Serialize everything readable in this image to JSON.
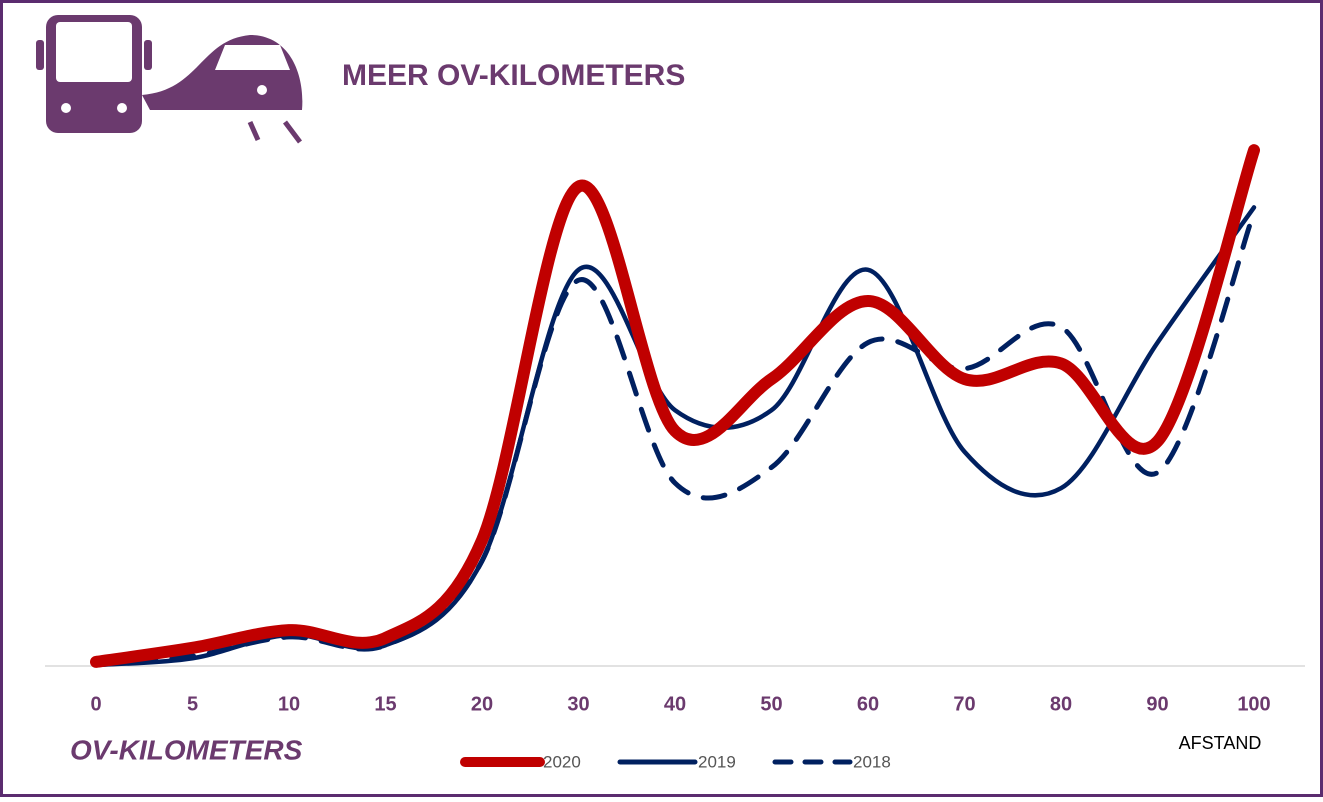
{
  "chart_data": {
    "type": "line",
    "title": "MEER OV-KILOMETERS",
    "x_label": "AFSTAND",
    "y_label": "OV-KILOMETERS",
    "categories": [
      "0",
      "5",
      "10",
      "15",
      "20",
      "30",
      "40",
      "50",
      "60",
      "70",
      "80",
      "90",
      "100"
    ],
    "ylim": [
      0,
      100
    ],
    "series": [
      {
        "name": "2020",
        "color": "#c00000",
        "style": "solid",
        "values": [
          0.6,
          3.3,
          6.7,
          5.2,
          24,
          92,
          45,
          55,
          70,
          55,
          58,
          43,
          99
        ]
      },
      {
        "name": "2019",
        "color": "#002060",
        "style": "solid",
        "values": [
          0,
          1.3,
          5.8,
          3.8,
          20,
          76,
          49,
          49,
          76,
          41,
          34,
          62,
          88
        ]
      },
      {
        "name": "2018",
        "color": "#002060",
        "style": "dashed",
        "values": [
          0,
          1.7,
          5.4,
          3.8,
          20,
          74,
          35,
          38,
          62,
          57,
          65,
          37,
          87
        ]
      }
    ]
  }
}
